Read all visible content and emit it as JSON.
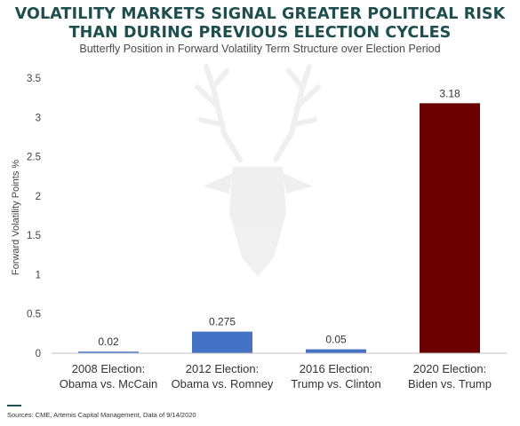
{
  "header": {
    "title_line1": "VOLATILITY MARKETS SIGNAL GREATER POLITICAL RISK",
    "title_line2": "THAN DURING PREVIOUS ELECTION CYCLES",
    "subtitle": "Butterfly Position in Forward Volatility Term Structure over Election Period"
  },
  "footer": {
    "source": "Sources: CME, Artemis Capital Management, Data of 9/14/2020"
  },
  "colors": {
    "title": "#1f4e4e",
    "bar_blue": "#4472c4",
    "bar_highlight": "#6b0000",
    "axis_text": "#444444"
  },
  "watermark": "stag-head-logo",
  "chart_data": {
    "type": "bar",
    "title": "",
    "xlabel": "",
    "ylabel": "Forward Volatility Points %",
    "ylim": [
      0,
      3.5
    ],
    "yticks": [
      0,
      0.5,
      1,
      1.5,
      2,
      2.5,
      3,
      3.5
    ],
    "ytick_labels": [
      "0",
      "0.5",
      "1",
      "1.5",
      "2",
      "2.5",
      "3",
      "3.5"
    ],
    "grid": false,
    "legend": "none",
    "categories": [
      [
        "2008 Election:",
        "Obama vs. McCain"
      ],
      [
        "2012 Election:",
        "Obama vs. Romney"
      ],
      [
        "2016 Election:",
        "Trump vs. Clinton"
      ],
      [
        "2020 Election:",
        "Biden vs. Trump"
      ]
    ],
    "values": [
      0.02,
      0.275,
      0.05,
      3.18
    ],
    "data_labels": [
      "0.02",
      "0.275",
      "0.05",
      "3.18"
    ],
    "bar_colors": [
      "#4472c4",
      "#4472c4",
      "#4472c4",
      "#6b0000"
    ]
  }
}
